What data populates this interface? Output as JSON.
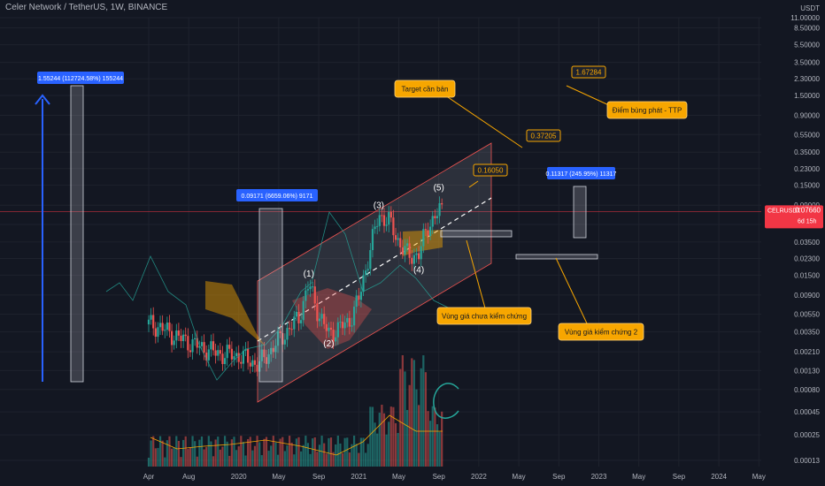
{
  "header": {
    "title": "Celer Network / TetherUS, 1W, BINANCE"
  },
  "chart_data": {
    "type": "candlestick",
    "symbol": "CELRUSDT",
    "price_scale": "log",
    "y_unit": "USDT",
    "y_ticks": [
      "11.00000",
      "8.50000",
      "5.50000",
      "3.50000",
      "2.30000",
      "1.50000",
      "0.90000",
      "0.55000",
      "0.35000",
      "0.23000",
      "0.15000",
      "0.09000",
      "0.05500",
      "0.03500",
      "0.02300",
      "0.01500",
      "0.00900",
      "0.00550",
      "0.00350",
      "0.00210",
      "0.00130",
      "0.00080",
      "0.00045",
      "0.00025",
      "0.00013"
    ],
    "x_ticks": [
      "Apr",
      "Aug",
      "2020",
      "May",
      "Sep",
      "2021",
      "May",
      "Sep",
      "2022",
      "May",
      "Sep",
      "2023",
      "May",
      "Sep",
      "2024",
      "May"
    ],
    "last_price": {
      "symbol": "CELRUSDT",
      "value": "0.07660",
      "countdown": "6d 15h",
      "color": "#f23645"
    },
    "price_path": [
      [
        "2019-03",
        0.0045
      ],
      [
        "2019-05",
        0.004
      ],
      [
        "2019-07",
        0.003
      ],
      [
        "2019-09",
        0.0024
      ],
      [
        "2019-11",
        0.002
      ],
      [
        "2020-01",
        0.0019
      ],
      [
        "2020-03",
        0.0015
      ],
      [
        "2020-05",
        0.0028
      ],
      [
        "2020-07",
        0.005
      ],
      [
        "2020-08",
        0.012
      ],
      [
        "2020-09",
        0.0055
      ],
      [
        "2020-10",
        0.0033
      ],
      [
        "2020-12",
        0.0045
      ],
      [
        "2021-01",
        0.008
      ],
      [
        "2021-02",
        0.025
      ],
      [
        "2021-03",
        0.07
      ],
      [
        "2021-04",
        0.06
      ],
      [
        "2021-05",
        0.035
      ],
      [
        "2021-06",
        0.024
      ],
      [
        "2021-07",
        0.026
      ],
      [
        "2021-08",
        0.055
      ],
      [
        "2021-09",
        0.0766
      ]
    ],
    "waves": [
      {
        "label": "(1)",
        "date": "2020-08",
        "price": 0.012
      },
      {
        "label": "(2)",
        "date": "2020-10",
        "price": 0.0033
      },
      {
        "label": "(3)",
        "date": "2021-03",
        "price": 0.07
      },
      {
        "label": "(4)",
        "date": "2021-07",
        "price": 0.022
      },
      {
        "label": "(5)",
        "date": "2021-09",
        "price": 0.11
      }
    ],
    "measurements": [
      {
        "label": "1.55244 (112724.58%) 155244",
        "color": "#2962ff"
      },
      {
        "label": "0.09171 (6659.06%) 9171",
        "color": "#2962ff"
      },
      {
        "label": "0.11317 (245.95%) 11317",
        "color": "#2962ff"
      }
    ],
    "price_labels": [
      {
        "value": "1.67284",
        "price": 1.67284
      },
      {
        "value": "0.37205",
        "price": 0.37205
      },
      {
        "value": "0.16050",
        "price": 0.1605
      }
    ],
    "annotations": [
      {
        "text": "Target cần bản"
      },
      {
        "text": "Điểm bùng phát - TTP"
      },
      {
        "text": "Vùng giá chưa kiểm chứng"
      },
      {
        "text": "Vùng giá kiểm chứng 2"
      }
    ],
    "colors": {
      "background": "#131722",
      "up": "#26a69a",
      "down": "#ef5350",
      "accent": "#2962ff",
      "note": "#f7a600"
    }
  }
}
